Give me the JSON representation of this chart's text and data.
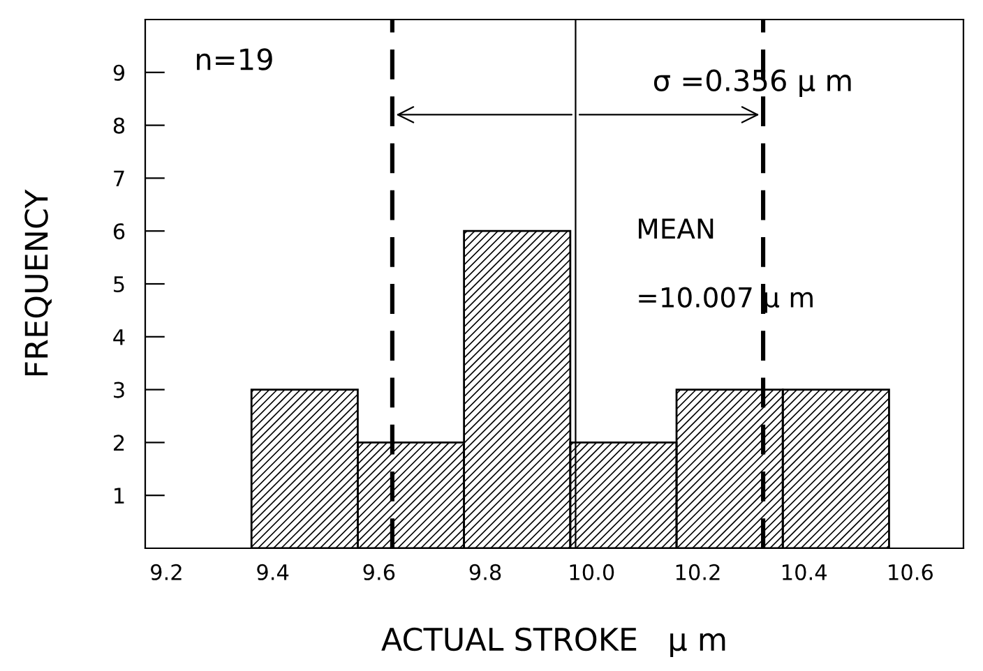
{
  "chart_data": {
    "type": "histogram",
    "xlabel": "ACTUAL STROKE   μ m",
    "ylabel": "FREQUENCY",
    "bins": [
      9.36,
      9.56,
      9.76,
      9.96,
      10.16,
      10.36,
      10.56
    ],
    "values": [
      3,
      2,
      6,
      2,
      3,
      3
    ],
    "color": "#000000",
    "xlim": [
      9.16,
      10.7
    ],
    "xticks": [
      {
        "value": 9.2,
        "label": "9.2"
      },
      {
        "value": 9.4,
        "label": "9.4"
      },
      {
        "value": 9.6,
        "label": "9.6"
      },
      {
        "value": 9.8,
        "label": "9.8"
      },
      {
        "value": 10.0,
        "label": "10.0"
      },
      {
        "value": 10.2,
        "label": "10.2"
      },
      {
        "value": 10.4,
        "label": "10.4"
      },
      {
        "value": 10.6,
        "label": "10.6"
      }
    ],
    "ylim": [
      0,
      10
    ],
    "yticks": [
      1,
      2,
      3,
      4,
      5,
      6,
      7,
      8,
      9
    ],
    "ref_lines": [
      {
        "axis": "x",
        "value": 9.625,
        "line_style": "dashed",
        "color": "#000000"
      },
      {
        "axis": "x",
        "value": 9.97,
        "line_style": "solid",
        "color": "#000000"
      },
      {
        "axis": "x",
        "value": 10.323,
        "line_style": "dashed",
        "color": "#000000"
      }
    ],
    "annotations": [
      "n=19",
      {
        "text": "σ =0.356 μ m",
        "x": 9.97,
        "y": 8.2
      },
      "MEAN",
      "=10.007 μ m"
    ],
    "grid": false,
    "legend": false
  }
}
